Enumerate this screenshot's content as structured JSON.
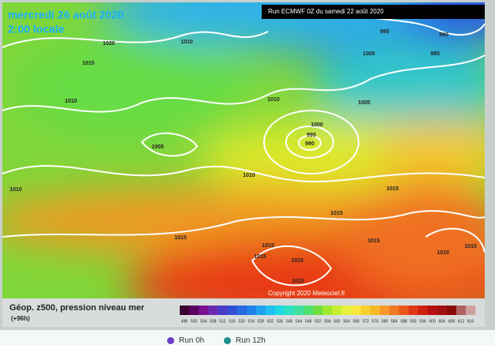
{
  "map": {
    "date": "mercredi 26 août 2020",
    "time": "2:00 locale",
    "run": "Run ECMWF 0Z du samedi 22 août 2020",
    "copyright": "Copyright 2020 Meteociel.fr",
    "isobars": [
      "1020",
      "1010",
      "1015",
      "1010",
      "1010",
      "1005",
      "1010",
      "995",
      "990",
      "1000",
      "995",
      "1005",
      "1000",
      "995",
      "990",
      "1010",
      "1015",
      "1015",
      "1015",
      "1015",
      "1015",
      "1015",
      "1015",
      "1010",
      "1010",
      "1015"
    ]
  },
  "legend": {
    "title": "Géop. z500, pression niveau mer",
    "lead": "(+96h)",
    "scale": [
      496,
      500,
      504,
      508,
      512,
      516,
      520,
      524,
      528,
      532,
      536,
      540,
      544,
      548,
      552,
      556,
      560,
      564,
      568,
      572,
      576,
      580,
      584,
      588,
      592,
      596,
      600,
      604,
      608,
      612,
      616
    ]
  },
  "runs": [
    "Run 0h",
    "Run 12h"
  ]
}
